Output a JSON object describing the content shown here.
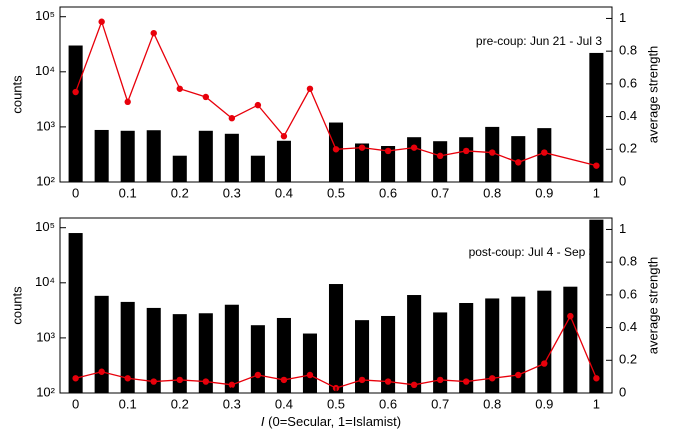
{
  "chart_data": [
    {
      "type": "bar-line",
      "annotation": "pre-coup: Jun 21 - Jul 3",
      "ylabel": "counts",
      "y2label": "average strength",
      "log_y": true,
      "xlim": [
        -0.03,
        1.03
      ],
      "xticks": [
        0,
        0.1,
        0.2,
        0.3,
        0.4,
        0.5,
        0.6,
        0.7,
        0.8,
        0.9,
        1
      ],
      "ylim": [
        100,
        150000
      ],
      "yticks": [
        {
          "value": 100,
          "label": "10²"
        },
        {
          "value": 1000,
          "label": "10³"
        },
        {
          "value": 10000,
          "label": "10⁴"
        },
        {
          "value": 100000,
          "label": "10⁵"
        }
      ],
      "y2lim": [
        0,
        1.07
      ],
      "y2ticks": [
        0,
        0.2,
        0.4,
        0.6,
        0.8,
        1
      ],
      "series": [
        {
          "type": "bar",
          "color": "#000000",
          "x": [
            0,
            0.05,
            0.1,
            0.15,
            0.2,
            0.25,
            0.3,
            0.35,
            0.4,
            0.45,
            0.5,
            0.55,
            0.6,
            0.65,
            0.7,
            0.75,
            0.8,
            0.85,
            0.9,
            0.95,
            1
          ],
          "values": [
            30000,
            880,
            850,
            870,
            300,
            850,
            750,
            300,
            560,
            null,
            1200,
            500,
            450,
            650,
            550,
            650,
            1000,
            680,
            950,
            null,
            22000
          ]
        },
        {
          "type": "line",
          "axis": "y2",
          "color": "#e8000b",
          "x": [
            0,
            0.05,
            0.1,
            0.15,
            0.2,
            0.25,
            0.3,
            0.35,
            0.4,
            0.45,
            0.5,
            0.55,
            0.6,
            0.65,
            0.7,
            0.75,
            0.8,
            0.85,
            0.9,
            1
          ],
          "values": [
            0.55,
            0.98,
            0.49,
            0.91,
            0.57,
            0.52,
            0.39,
            0.47,
            0.28,
            0.57,
            0.2,
            0.21,
            0.19,
            0.21,
            0.16,
            0.19,
            0.18,
            0.12,
            0.18,
            0.1
          ]
        }
      ]
    },
    {
      "type": "bar-line",
      "annotation": "post-coup: Jul 4 - Sep 30",
      "ylabel": "counts",
      "y2label": "average strength",
      "xlabel_var": "I",
      "xlabel": "(0=Secular, 1=Islamist)",
      "log_y": true,
      "xlim": [
        -0.03,
        1.03
      ],
      "xticks": [
        0,
        0.1,
        0.2,
        0.3,
        0.4,
        0.5,
        0.6,
        0.7,
        0.8,
        0.9,
        1
      ],
      "ylim": [
        100,
        150000
      ],
      "yticks": [
        {
          "value": 100,
          "label": "10²"
        },
        {
          "value": 1000,
          "label": "10³"
        },
        {
          "value": 10000,
          "label": "10⁴"
        },
        {
          "value": 100000,
          "label": "10⁵"
        }
      ],
      "y2lim": [
        0,
        1.07
      ],
      "y2ticks": [
        0,
        0.2,
        0.4,
        0.6,
        0.8,
        1
      ],
      "series": [
        {
          "type": "bar",
          "color": "#000000",
          "x": [
            0,
            0.05,
            0.1,
            0.15,
            0.2,
            0.25,
            0.3,
            0.35,
            0.4,
            0.45,
            0.5,
            0.55,
            0.6,
            0.65,
            0.7,
            0.75,
            0.8,
            0.85,
            0.9,
            0.95,
            1
          ],
          "values": [
            80000,
            5800,
            4500,
            3500,
            2700,
            2800,
            4000,
            1700,
            2300,
            1200,
            9500,
            2100,
            2500,
            6000,
            2900,
            4300,
            5200,
            5600,
            7200,
            8500,
            140000
          ]
        },
        {
          "type": "line",
          "axis": "y2",
          "color": "#e8000b",
          "x": [
            0,
            0.05,
            0.1,
            0.15,
            0.2,
            0.25,
            0.3,
            0.35,
            0.4,
            0.45,
            0.5,
            0.55,
            0.6,
            0.65,
            0.7,
            0.75,
            0.8,
            0.85,
            0.9,
            0.95,
            1
          ],
          "values": [
            0.09,
            0.13,
            0.09,
            0.07,
            0.08,
            0.07,
            0.05,
            0.11,
            0.08,
            0.11,
            0.03,
            0.08,
            0.07,
            0.05,
            0.08,
            0.07,
            0.09,
            0.11,
            0.18,
            0.47,
            0.09
          ]
        }
      ]
    }
  ]
}
